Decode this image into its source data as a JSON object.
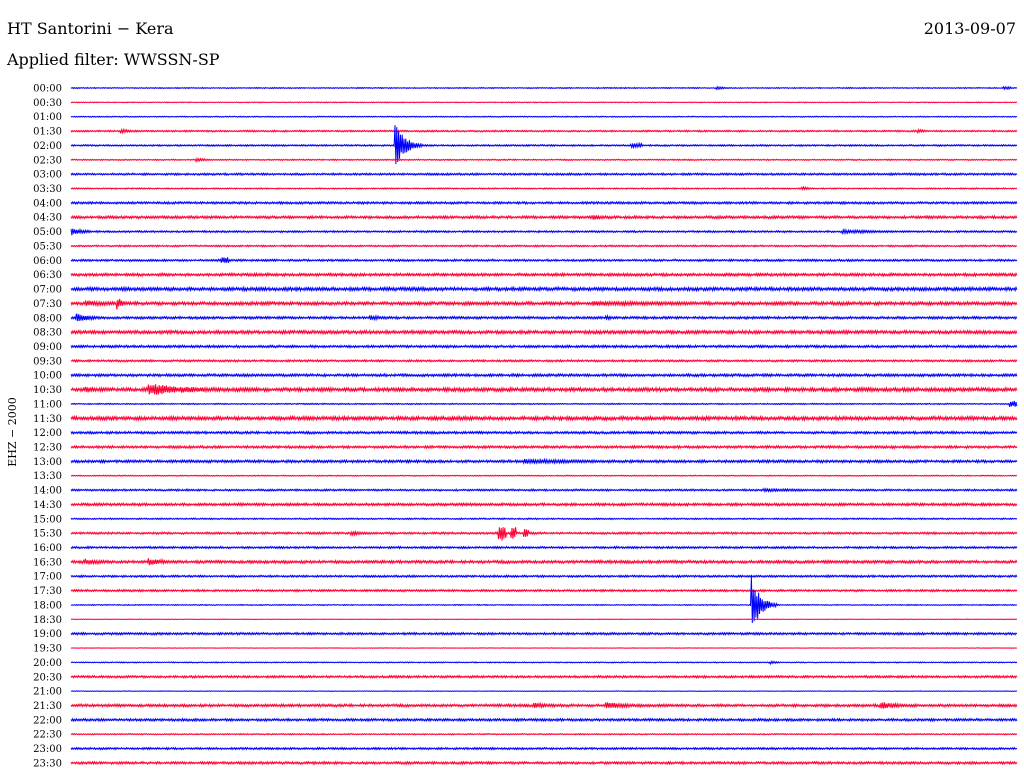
{
  "header": {
    "station": "HT Santorini − Kera",
    "date": "2013-09-07",
    "filter": "Applied filter: WWSSN-SP"
  },
  "channel_label": "EHZ − 2000",
  "colors": {
    "blue": "#0000ff",
    "red": "#ff0033",
    "black": "#000000"
  },
  "chart_data": {
    "type": "line",
    "title": "HT Santorini − Kera",
    "subtitle": "Applied filter: WWSSN-SP",
    "ylabel": "EHZ − 2000",
    "xlabel": "",
    "row_labels": [
      "00:00",
      "00:30",
      "01:00",
      "01:30",
      "02:00",
      "02:30",
      "03:00",
      "03:30",
      "04:00",
      "04:30",
      "05:00",
      "05:30",
      "06:00",
      "06:30",
      "07:00",
      "07:30",
      "08:00",
      "08:30",
      "09:00",
      "09:30",
      "10:00",
      "10:30",
      "11:00",
      "11:30",
      "12:00",
      "12:30",
      "13:00",
      "13:30",
      "14:00",
      "14:30",
      "15:00",
      "15:30",
      "16:00",
      "16:30",
      "17:00",
      "17:30",
      "18:00",
      "18:30",
      "19:00",
      "19:30",
      "20:00",
      "20:30",
      "21:00",
      "21:30",
      "22:00",
      "22:30",
      "23:00",
      "23:30"
    ],
    "row_minutes": 30,
    "row_colors": [
      "blue",
      "red"
    ],
    "noise_levels": [
      0.5,
      0.4,
      0.5,
      0.8,
      0.8,
      0.6,
      1.0,
      0.6,
      1.1,
      1.3,
      0.9,
      0.8,
      1.0,
      1.4,
      1.7,
      1.6,
      1.2,
      1.6,
      1.2,
      1.0,
      1.3,
      1.8,
      0.6,
      1.8,
      1.2,
      1.2,
      1.3,
      0.5,
      0.9,
      1.3,
      0.7,
      1.0,
      1.0,
      1.4,
      1.0,
      1.0,
      0.5,
      0.3,
      1.1,
      0.3,
      0.5,
      1.1,
      0.3,
      1.3,
      1.2,
      0.6,
      1.0,
      1.2
    ],
    "events": [
      {
        "row": 0,
        "minute": 20.5,
        "amplitude": 1.5,
        "duration_min": 1.0
      },
      {
        "row": 0,
        "minute": 29.6,
        "amplitude": 1.2,
        "duration_min": 0.2
      },
      {
        "row": 3,
        "minute": 1.6,
        "amplitude": 2.0,
        "duration_min": 1.5
      },
      {
        "row": 3,
        "minute": 26.9,
        "amplitude": 1.6,
        "duration_min": 0.8
      },
      {
        "row": 4,
        "minute": 10.3,
        "amplitude": 22.0,
        "duration_min": 0.9
      },
      {
        "row": 4,
        "minute": 17.8,
        "amplitude": 2.0,
        "duration_min": 0.3
      },
      {
        "row": 5,
        "minute": 4.0,
        "amplitude": 2.0,
        "duration_min": 1.0
      },
      {
        "row": 7,
        "minute": 23.2,
        "amplitude": 2.0,
        "duration_min": 0.7
      },
      {
        "row": 9,
        "minute": 16.6,
        "amplitude": 2.5,
        "duration_min": 1.2
      },
      {
        "row": 10,
        "minute": 0.0,
        "amplitude": 4.0,
        "duration_min": 1.3
      },
      {
        "row": 10,
        "minute": 24.5,
        "amplitude": 2.0,
        "duration_min": 4.5
      },
      {
        "row": 12,
        "minute": 4.8,
        "amplitude": 3.0,
        "duration_min": 0.2
      },
      {
        "row": 15,
        "minute": 0.5,
        "amplitude": 3.0,
        "duration_min": 3.0
      },
      {
        "row": 15,
        "minute": 1.5,
        "amplitude": 5.5,
        "duration_min": 0.6
      },
      {
        "row": 15,
        "minute": 16.6,
        "amplitude": 2.5,
        "duration_min": 13.0
      },
      {
        "row": 16,
        "minute": 0.2,
        "amplitude": 4.5,
        "duration_min": 1.5
      },
      {
        "row": 16,
        "minute": 9.5,
        "amplitude": 2.5,
        "duration_min": 1.6
      },
      {
        "row": 16,
        "minute": 17.0,
        "amplitude": 2.0,
        "duration_min": 1.0
      },
      {
        "row": 21,
        "minute": 0.5,
        "amplitude": 3.5,
        "duration_min": 0.8
      },
      {
        "row": 21,
        "minute": 2.5,
        "amplitude": 6.0,
        "duration_min": 4.8
      },
      {
        "row": 22,
        "minute": 29.8,
        "amplitude": 3.0,
        "duration_min": 0.2
      },
      {
        "row": 26,
        "minute": 14.4,
        "amplitude": 2.5,
        "duration_min": 8.0
      },
      {
        "row": 28,
        "minute": 22.0,
        "amplitude": 1.5,
        "duration_min": 7.5
      },
      {
        "row": 31,
        "minute": 8.9,
        "amplitude": 2.0,
        "duration_min": 2.0
      },
      {
        "row": 31,
        "minute": 13.6,
        "amplitude": 8.0,
        "duration_min": 0.2
      },
      {
        "row": 31,
        "minute": 14.0,
        "amplitude": 6.0,
        "duration_min": 0.1
      },
      {
        "row": 31,
        "minute": 14.4,
        "amplitude": 5.0,
        "duration_min": 0.1
      },
      {
        "row": 33,
        "minute": 0.5,
        "amplitude": 3.0,
        "duration_min": 2.0
      },
      {
        "row": 33,
        "minute": 2.5,
        "amplitude": 3.5,
        "duration_min": 2.0
      },
      {
        "row": 36,
        "minute": 21.6,
        "amplitude": 27.0,
        "duration_min": 0.8
      },
      {
        "row": 40,
        "minute": 22.2,
        "amplitude": 1.5,
        "duration_min": 0.8
      },
      {
        "row": 43,
        "minute": 14.7,
        "amplitude": 3.0,
        "duration_min": 1.6
      },
      {
        "row": 43,
        "minute": 17.0,
        "amplitude": 3.5,
        "duration_min": 2.5
      },
      {
        "row": 43,
        "minute": 25.7,
        "amplitude": 3.5,
        "duration_min": 2.4
      }
    ]
  }
}
